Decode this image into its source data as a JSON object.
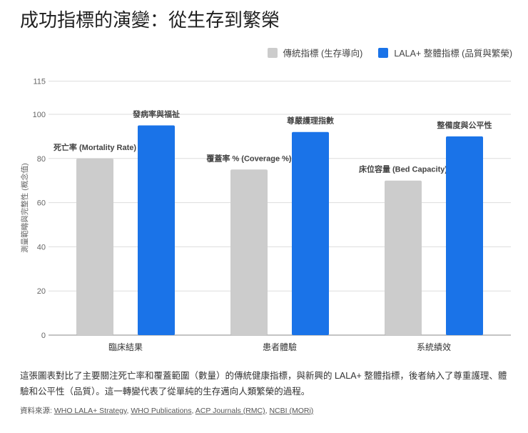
{
  "chart_data": {
    "type": "bar",
    "title": "成功指標的演變：從生存到繁榮",
    "ylabel": "測量範疇與完整性 (概念值)",
    "xlabel": "",
    "ylim": [
      0,
      115
    ],
    "yticks": [
      0,
      20,
      40,
      60,
      80,
      100,
      115
    ],
    "grid": true,
    "legend_position": "top-right",
    "categories": [
      "臨床結果",
      "患者體驗",
      "系統績效"
    ],
    "series": [
      {
        "name": "傳統指標 (生存導向)",
        "color": "#cccccc",
        "values": [
          80,
          75,
          70
        ],
        "labels": [
          "死亡率 (Mortality Rate)",
          "覆蓋率 % (Coverage %)",
          "床位容量 (Bed Capacity)"
        ]
      },
      {
        "name": "LALA+ 整體指標 (品質與繁榮)",
        "color": "#1a73e8",
        "values": [
          95,
          92,
          90
        ],
        "labels": [
          "發病率與福祉",
          "尊嚴護理指數",
          "整備度與公平性"
        ]
      }
    ]
  },
  "description": "這張圖表對比了主要關注死亡率和覆蓋範圍（數量）的傳統健康指標，與新興的 LALA+ 整體指標，後者納入了尊重護理、體驗和公平性（品質）。這一轉變代表了從單純的生存邁向人類繁榮的過程。",
  "sources": {
    "label": "資料來源:",
    "links": [
      "WHO LALA+ Strategy",
      "WHO Publications",
      "ACP Journals (RMC)",
      "NCBI (MORi)"
    ]
  }
}
